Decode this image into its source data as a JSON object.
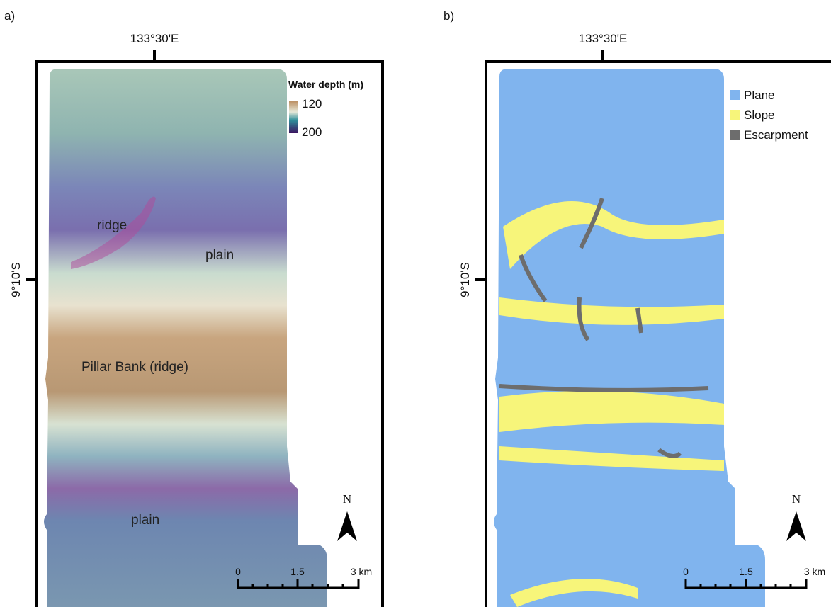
{
  "panels": [
    {
      "label": "a)",
      "lon_label": "133°30'E",
      "lat_label": "9°10'S",
      "legend": {
        "title": "Water depth (m)",
        "top": "120",
        "bottom": "200"
      },
      "annotations": [
        "ridge",
        "plain",
        "Pillar Bank (ridge)",
        "plain"
      ],
      "north": "N",
      "scale": [
        "0",
        "1.5",
        "3 km"
      ]
    },
    {
      "label": "b)",
      "lon_label": "133°30'E",
      "lat_label": "9°10'S",
      "legend": {
        "items": [
          "Plane",
          "Slope",
          "Escarpment"
        ]
      },
      "north": "N",
      "scale": [
        "0",
        "1.5",
        "3 km"
      ]
    }
  ]
}
